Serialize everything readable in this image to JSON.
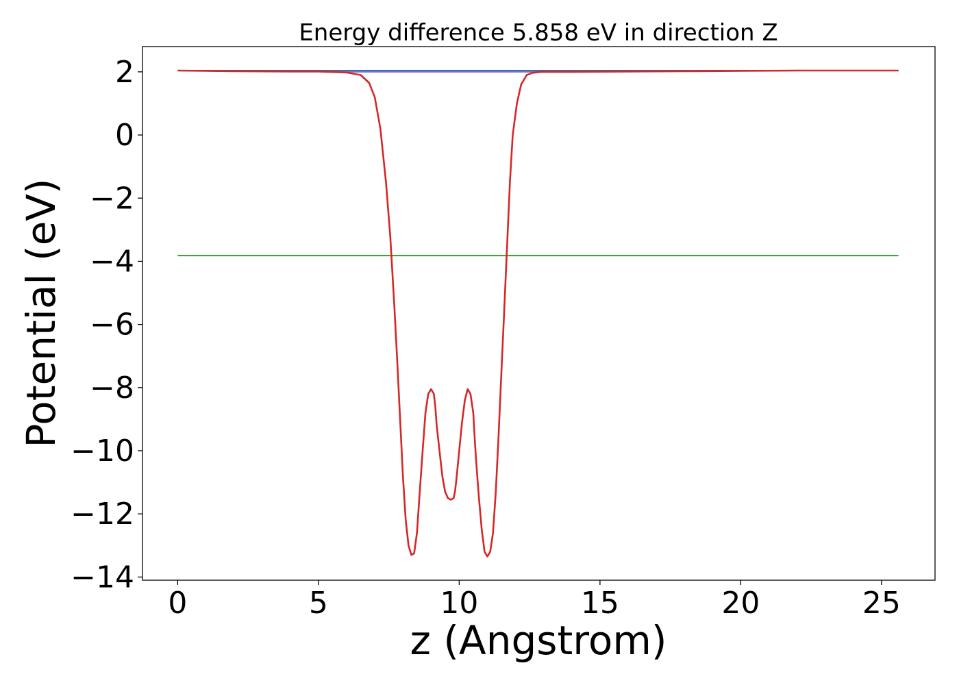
{
  "chart_data": {
    "type": "line",
    "title": "Energy difference 5.858 eV in direction Z",
    "xlabel": "z (Angstrom)",
    "ylabel": "Potential (eV)",
    "xlim": [
      -1.25,
      26.9
    ],
    "ylim": [
      -14.1,
      2.8
    ],
    "x_ticks": [
      0,
      5,
      10,
      15,
      20,
      25
    ],
    "y_ticks": [
      2,
      0,
      -2,
      -4,
      -6,
      -8,
      -10,
      -12,
      -14
    ],
    "x_tick_labels": [
      "0",
      "5",
      "10",
      "15",
      "20",
      "25"
    ],
    "y_tick_labels": [
      "2",
      "0",
      "−2",
      "−4",
      "−6",
      "−8",
      "−10",
      "−12",
      "−14"
    ],
    "grid": false,
    "legend": "none",
    "series": [
      {
        "color": "#1f77b4",
        "x": [
          0,
          25.6
        ],
        "y": [
          2.04,
          2.04
        ]
      },
      {
        "color": "#2ca02c",
        "x": [
          0,
          25.6
        ],
        "y": [
          -3.82,
          -3.82
        ]
      },
      {
        "color": "#9467bd",
        "x": [
          0,
          1,
          2,
          3,
          4,
          5,
          6,
          12.9,
          14,
          16,
          18,
          20,
          22,
          24,
          25.6
        ],
        "y": [
          2.04,
          2.03,
          2.02,
          2.02,
          2.01,
          2.01,
          2.0,
          2.0,
          2.0,
          2.01,
          2.02,
          2.03,
          2.04,
          2.04,
          2.04
        ]
      },
      {
        "color": "#d62728",
        "x": [
          0,
          2,
          4,
          5,
          6,
          6.5,
          6.8,
          7.0,
          7.2,
          7.4,
          7.55,
          7.7,
          7.8,
          7.9,
          8.0,
          8.1,
          8.2,
          8.3,
          8.4,
          8.5,
          8.6,
          8.7,
          8.8,
          8.9,
          9.0,
          9.1,
          9.15,
          9.2,
          9.3,
          9.4,
          9.5,
          9.6,
          9.7,
          9.8,
          9.85,
          9.9,
          10.0,
          10.1,
          10.2,
          10.3,
          10.4,
          10.5,
          10.55,
          10.6,
          10.7,
          10.8,
          10.9,
          11.0,
          11.1,
          11.2,
          11.3,
          11.4,
          11.5,
          11.6,
          11.7,
          11.8,
          11.9,
          12.05,
          12.2,
          12.4,
          12.6,
          12.9,
          13.5,
          14,
          16,
          18,
          20,
          22,
          24,
          25.6
        ],
        "y": [
          2.04,
          2.02,
          2.01,
          2.01,
          1.98,
          1.9,
          1.65,
          1.2,
          0.2,
          -1.5,
          -3.2,
          -5.5,
          -7.2,
          -9.0,
          -10.8,
          -12.2,
          -13.0,
          -13.3,
          -13.25,
          -12.6,
          -11.3,
          -10.0,
          -8.8,
          -8.2,
          -8.05,
          -8.2,
          -8.6,
          -9.2,
          -10.0,
          -10.8,
          -11.3,
          -11.5,
          -11.55,
          -11.5,
          -11.3,
          -10.9,
          -10.0,
          -9.1,
          -8.4,
          -8.05,
          -8.2,
          -8.8,
          -9.6,
          -10.3,
          -11.5,
          -12.5,
          -13.2,
          -13.35,
          -13.2,
          -12.6,
          -11.3,
          -9.5,
          -7.5,
          -5.5,
          -3.5,
          -1.5,
          0.0,
          1.0,
          1.6,
          1.9,
          1.97,
          2.0,
          2.0,
          2.0,
          2.01,
          2.02,
          2.03,
          2.04,
          2.04,
          2.04
        ]
      }
    ]
  }
}
